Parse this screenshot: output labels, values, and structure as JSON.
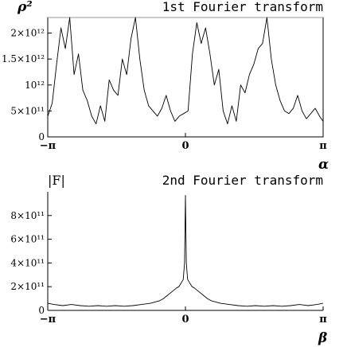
{
  "chart_data": [
    {
      "type": "line",
      "title": "1st Fourier transform",
      "ylabel": "ρ²",
      "xlabel": "α",
      "xlim": [
        -3.14159,
        3.14159
      ],
      "ylim": [
        0,
        2300000000000.0
      ],
      "x_ticks": [
        {
          "value": -3.14159,
          "label": "−π"
        },
        {
          "value": 0,
          "label": "0"
        },
        {
          "value": 3.14159,
          "label": "π"
        }
      ],
      "y_ticks": [
        {
          "value": 0,
          "label": "0"
        },
        {
          "value": 500000000000.0,
          "label": "5×10¹¹"
        },
        {
          "value": 1000000000000.0,
          "label": "10¹²"
        },
        {
          "value": 1500000000000.0,
          "label": "1.5×10¹²"
        },
        {
          "value": 2000000000000.0,
          "label": "2×10¹²"
        }
      ],
      "series": [
        {
          "x": [
            -3.14,
            -3.04,
            -2.94,
            -2.84,
            -2.74,
            -2.64,
            -2.54,
            -2.44,
            -2.34,
            -2.24,
            -2.14,
            -2.04,
            -1.94,
            -1.84,
            -1.74,
            -1.64,
            -1.54,
            -1.44,
            -1.34,
            -1.24,
            -1.14,
            -1.04,
            -0.94,
            -0.84,
            -0.74,
            -0.64,
            -0.54,
            -0.44,
            -0.34,
            -0.24,
            -0.14,
            -0.04,
            0.06,
            0.16,
            0.26,
            0.36,
            0.46,
            0.56,
            0.66,
            0.76,
            0.86,
            0.96,
            1.06,
            1.16,
            1.26,
            1.36,
            1.46,
            1.56,
            1.66,
            1.76,
            1.86,
            1.96,
            2.06,
            2.16,
            2.26,
            2.36,
            2.46,
            2.56,
            2.66,
            2.76,
            2.86,
            2.96,
            3.06,
            3.14
          ],
          "y": [
            400000000000.0,
            650000000000.0,
            1400000000000.0,
            2100000000000.0,
            1700000000000.0,
            2300000000000.0,
            1200000000000.0,
            1600000000000.0,
            900000000000.0,
            700000000000.0,
            400000000000.0,
            250000000000.0,
            600000000000.0,
            300000000000.0,
            1100000000000.0,
            900000000000.0,
            800000000000.0,
            1500000000000.0,
            1200000000000.0,
            1900000000000.0,
            2300000000000.0,
            1500000000000.0,
            900000000000.0,
            600000000000.0,
            500000000000.0,
            400000000000.0,
            550000000000.0,
            800000000000.0,
            500000000000.0,
            300000000000.0,
            400000000000.0,
            450000000000.0,
            500000000000.0,
            1600000000000.0,
            2200000000000.0,
            1800000000000.0,
            2100000000000.0,
            1600000000000.0,
            1000000000000.0,
            1300000000000.0,
            500000000000.0,
            250000000000.0,
            600000000000.0,
            300000000000.0,
            1000000000000.0,
            850000000000.0,
            1200000000000.0,
            1400000000000.0,
            1700000000000.0,
            1800000000000.0,
            2300000000000.0,
            1500000000000.0,
            1000000000000.0,
            700000000000.0,
            500000000000.0,
            450000000000.0,
            550000000000.0,
            800000000000.0,
            500000000000.0,
            350000000000.0,
            450000000000.0,
            550000000000.0,
            400000000000.0,
            300000000000.0
          ]
        }
      ]
    },
    {
      "type": "line",
      "title": "2nd Fourier transform",
      "ylabel": "|F|",
      "xlabel": "β",
      "xlim": [
        -3.14159,
        3.14159
      ],
      "ylim": [
        0,
        1000000000000.0
      ],
      "x_ticks": [
        {
          "value": -3.14159,
          "label": "−π"
        },
        {
          "value": 0,
          "label": "0"
        },
        {
          "value": 3.14159,
          "label": "π"
        }
      ],
      "y_ticks": [
        {
          "value": 0,
          "label": "0"
        },
        {
          "value": 200000000000.0,
          "label": "2×10¹¹"
        },
        {
          "value": 400000000000.0,
          "label": "4×10¹¹"
        },
        {
          "value": 600000000000.0,
          "label": "6×10¹¹"
        },
        {
          "value": 800000000000.0,
          "label": "8×10¹¹"
        }
      ],
      "series": [
        {
          "x": [
            -3.14,
            -3.0,
            -2.8,
            -2.6,
            -2.4,
            -2.2,
            -2.0,
            -1.8,
            -1.6,
            -1.4,
            -1.2,
            -1.0,
            -0.8,
            -0.6,
            -0.5,
            -0.4,
            -0.3,
            -0.2,
            -0.15,
            -0.1,
            -0.05,
            -0.02,
            0,
            0.02,
            0.05,
            0.1,
            0.15,
            0.2,
            0.3,
            0.4,
            0.5,
            0.6,
            0.8,
            1.0,
            1.2,
            1.4,
            1.6,
            1.8,
            2.0,
            2.2,
            2.4,
            2.6,
            2.8,
            3.0,
            3.14
          ],
          "y": [
            60000000000.0,
            50000000000.0,
            40000000000.0,
            50000000000.0,
            40000000000.0,
            35000000000.0,
            40000000000.0,
            35000000000.0,
            40000000000.0,
            35000000000.0,
            40000000000.0,
            50000000000.0,
            60000000000.0,
            80000000000.0,
            100000000000.0,
            130000000000.0,
            160000000000.0,
            190000000000.0,
            200000000000.0,
            230000000000.0,
            260000000000.0,
            400000000000.0,
            970000000000.0,
            400000000000.0,
            260000000000.0,
            230000000000.0,
            200000000000.0,
            190000000000.0,
            160000000000.0,
            130000000000.0,
            100000000000.0,
            80000000000.0,
            60000000000.0,
            50000000000.0,
            40000000000.0,
            35000000000.0,
            40000000000.0,
            35000000000.0,
            40000000000.0,
            35000000000.0,
            40000000000.0,
            50000000000.0,
            40000000000.0,
            50000000000.0,
            60000000000.0
          ]
        }
      ]
    }
  ]
}
